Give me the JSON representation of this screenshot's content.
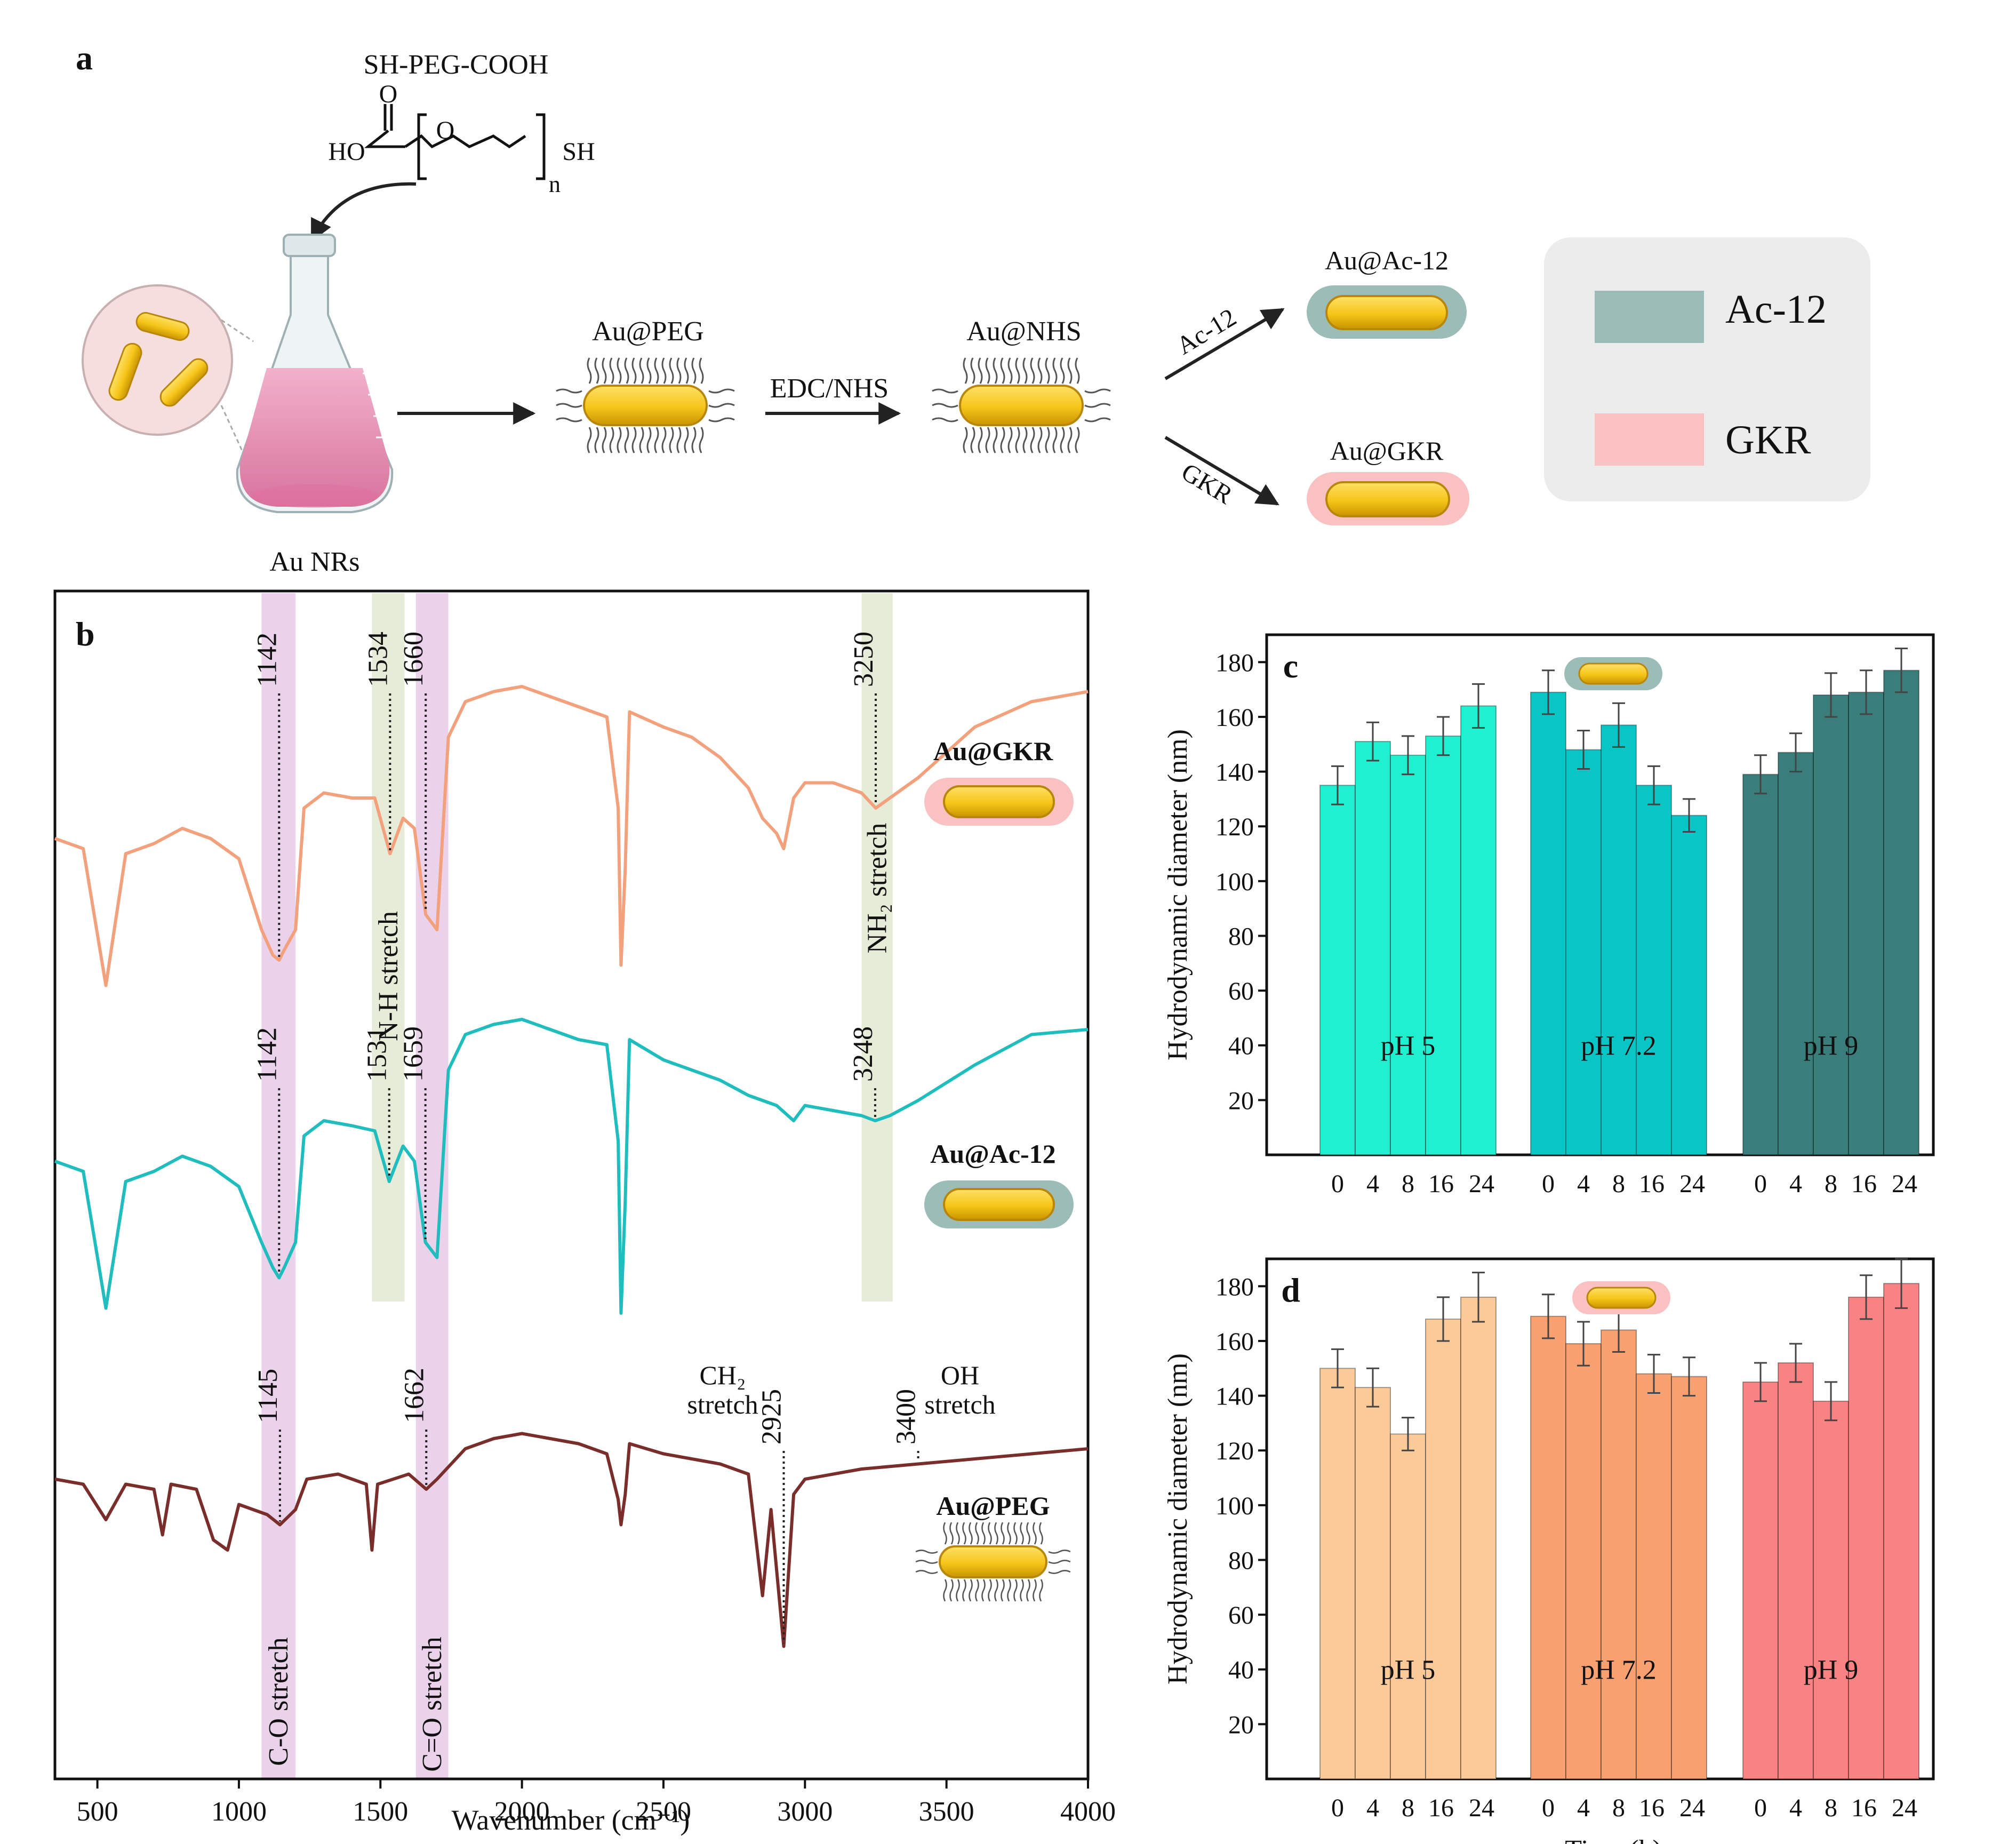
{
  "panels": {
    "a": "a",
    "b": "b",
    "c": "c",
    "d": "d"
  },
  "scheme": {
    "reagent": "SH-PEG-COOH",
    "formula_o": "O",
    "formula_ho": "HO",
    "formula_ring_o": "O",
    "formula_sh": "SH",
    "formula_n": "n",
    "au_nrs": "Au NRs",
    "au_peg": "Au@PEG",
    "edc_nhs": "EDC/NHS",
    "au_nhs": "Au@NHS",
    "ac12_arrow": "Ac-12",
    "gkr_arrow": "GKR",
    "au_ac12": "Au@Ac-12",
    "au_gkr": "Au@GKR"
  },
  "legend": [
    {
      "label": "Ac-12",
      "color": "#9cbcb8"
    },
    {
      "label": "GKR",
      "color": "#f9c1c1"
    }
  ],
  "colors": {
    "gold": "#f5c518",
    "gold_edge": "#b8860b",
    "flask_liquid": "#e592b4",
    "gkr_spectrum": "#f3a07c",
    "ac12_spectrum": "#1fbdbd",
    "peg_spectrum": "#7a2e2b",
    "band_purple": "#ead3ea",
    "band_green": "#e7ecd9"
  },
  "chart_data": [
    {
      "panel": "b",
      "type": "line",
      "xlabel": "Wavenumber (cm⁻¹)",
      "xlim": [
        350,
        4000
      ],
      "xticks": [
        "500",
        "1000",
        "1500",
        "2000",
        "2500",
        "3000",
        "3500",
        "4000"
      ],
      "grid": false,
      "series": [
        {
          "name": "Au@GKR",
          "points": [
            [
              350,
              3.4
            ],
            [
              450,
              3.2
            ],
            [
              530,
              0.5
            ],
            [
              600,
              3.1
            ],
            [
              700,
              3.3
            ],
            [
              800,
              3.6
            ],
            [
              900,
              3.4
            ],
            [
              1000,
              3.0
            ],
            [
              1080,
              1.6
            ],
            [
              1120,
              1.1
            ],
            [
              1142,
              1.0
            ],
            [
              1160,
              1.2
            ],
            [
              1200,
              1.6
            ],
            [
              1230,
              4.0
            ],
            [
              1300,
              4.3
            ],
            [
              1400,
              4.2
            ],
            [
              1480,
              4.2
            ],
            [
              1534,
              3.1
            ],
            [
              1580,
              3.8
            ],
            [
              1620,
              3.6
            ],
            [
              1660,
              1.9
            ],
            [
              1700,
              1.6
            ],
            [
              1740,
              5.4
            ],
            [
              1800,
              6.1
            ],
            [
              1900,
              6.3
            ],
            [
              2000,
              6.4
            ],
            [
              2100,
              6.2
            ],
            [
              2200,
              6.0
            ],
            [
              2300,
              5.8
            ],
            [
              2340,
              4.0
            ],
            [
              2350,
              0.9
            ],
            [
              2365,
              2.8
            ],
            [
              2380,
              5.9
            ],
            [
              2500,
              5.6
            ],
            [
              2600,
              5.4
            ],
            [
              2700,
              5.0
            ],
            [
              2800,
              4.4
            ],
            [
              2850,
              3.8
            ],
            [
              2900,
              3.5
            ],
            [
              2925,
              3.2
            ],
            [
              2960,
              4.2
            ],
            [
              3000,
              4.5
            ],
            [
              3100,
              4.5
            ],
            [
              3200,
              4.3
            ],
            [
              3250,
              4.0
            ],
            [
              3300,
              4.2
            ],
            [
              3400,
              4.6
            ],
            [
              3600,
              5.6
            ],
            [
              3800,
              6.1
            ],
            [
              4000,
              6.3
            ]
          ]
        },
        {
          "name": "Au@Ac-12",
          "points": [
            [
              350,
              3.4
            ],
            [
              450,
              3.2
            ],
            [
              530,
              0.5
            ],
            [
              600,
              3.0
            ],
            [
              700,
              3.2
            ],
            [
              800,
              3.5
            ],
            [
              900,
              3.3
            ],
            [
              1000,
              2.9
            ],
            [
              1080,
              1.8
            ],
            [
              1120,
              1.3
            ],
            [
              1142,
              1.1
            ],
            [
              1160,
              1.3
            ],
            [
              1200,
              1.8
            ],
            [
              1230,
              3.9
            ],
            [
              1300,
              4.2
            ],
            [
              1400,
              4.1
            ],
            [
              1480,
              4.0
            ],
            [
              1531,
              3.0
            ],
            [
              1580,
              3.7
            ],
            [
              1620,
              3.4
            ],
            [
              1659,
              1.8
            ],
            [
              1700,
              1.5
            ],
            [
              1740,
              5.2
            ],
            [
              1800,
              5.9
            ],
            [
              1900,
              6.1
            ],
            [
              2000,
              6.2
            ],
            [
              2100,
              6.0
            ],
            [
              2200,
              5.8
            ],
            [
              2300,
              5.7
            ],
            [
              2340,
              3.8
            ],
            [
              2350,
              0.4
            ],
            [
              2365,
              2.6
            ],
            [
              2380,
              5.8
            ],
            [
              2500,
              5.4
            ],
            [
              2600,
              5.2
            ],
            [
              2700,
              5.0
            ],
            [
              2800,
              4.7
            ],
            [
              2900,
              4.5
            ],
            [
              2960,
              4.2
            ],
            [
              3000,
              4.5
            ],
            [
              3100,
              4.4
            ],
            [
              3200,
              4.3
            ],
            [
              3248,
              4.2
            ],
            [
              3300,
              4.3
            ],
            [
              3400,
              4.6
            ],
            [
              3600,
              5.3
            ],
            [
              3800,
              5.9
            ],
            [
              4000,
              6.0
            ]
          ]
        },
        {
          "name": "Au@PEG",
          "points": [
            [
              350,
              3.6
            ],
            [
              450,
              3.5
            ],
            [
              530,
              2.8
            ],
            [
              600,
              3.5
            ],
            [
              700,
              3.4
            ],
            [
              730,
              2.5
            ],
            [
              760,
              3.5
            ],
            [
              850,
              3.4
            ],
            [
              910,
              2.4
            ],
            [
              960,
              2.2
            ],
            [
              1000,
              3.1
            ],
            [
              1100,
              2.9
            ],
            [
              1145,
              2.7
            ],
            [
              1200,
              3.0
            ],
            [
              1240,
              3.6
            ],
            [
              1350,
              3.7
            ],
            [
              1450,
              3.5
            ],
            [
              1470,
              2.2
            ],
            [
              1490,
              3.5
            ],
            [
              1600,
              3.7
            ],
            [
              1662,
              3.4
            ],
            [
              1700,
              3.6
            ],
            [
              1800,
              4.2
            ],
            [
              1900,
              4.4
            ],
            [
              2000,
              4.5
            ],
            [
              2100,
              4.4
            ],
            [
              2200,
              4.3
            ],
            [
              2300,
              4.1
            ],
            [
              2340,
              3.2
            ],
            [
              2350,
              2.7
            ],
            [
              2365,
              3.3
            ],
            [
              2380,
              4.3
            ],
            [
              2500,
              4.1
            ],
            [
              2600,
              4.0
            ],
            [
              2700,
              3.9
            ],
            [
              2800,
              3.7
            ],
            [
              2850,
              1.3
            ],
            [
              2880,
              3.0
            ],
            [
              2925,
              0.3
            ],
            [
              2960,
              3.3
            ],
            [
              3000,
              3.6
            ],
            [
              3200,
              3.8
            ],
            [
              3400,
              3.9
            ],
            [
              3600,
              4.0
            ],
            [
              3800,
              4.1
            ],
            [
              4000,
              4.2
            ]
          ]
        }
      ],
      "bands": [
        {
          "label": "C-O stretch",
          "x": [
            1080,
            1200
          ],
          "color": "#ead3ea"
        },
        {
          "label": "C=O stretch",
          "x": [
            1625,
            1740
          ],
          "color": "#ead3ea"
        },
        {
          "label": "N-H stretch",
          "x": [
            1470,
            1585
          ],
          "color": "#e7ecd9"
        },
        {
          "label": "NH₂ stretch",
          "x": [
            3200,
            3310
          ],
          "color": "#e7ecd9"
        }
      ],
      "peak_labels": [
        {
          "text": "1142",
          "series": "Au@GKR",
          "x": 1142
        },
        {
          "text": "1534",
          "series": "Au@GKR",
          "x": 1534
        },
        {
          "text": "1660",
          "series": "Au@GKR",
          "x": 1660
        },
        {
          "text": "3250",
          "series": "Au@GKR",
          "x": 3250
        },
        {
          "text": "1142",
          "series": "Au@Ac-12",
          "x": 1142
        },
        {
          "text": "1531",
          "series": "Au@Ac-12",
          "x": 1531
        },
        {
          "text": "1659",
          "series": "Au@Ac-12",
          "x": 1659
        },
        {
          "text": "3248",
          "series": "Au@Ac-12",
          "x": 3248
        },
        {
          "text": "1145",
          "series": "Au@PEG",
          "x": 1145
        },
        {
          "text": "1662",
          "series": "Au@PEG",
          "x": 1662
        },
        {
          "text": "2925",
          "series": "Au@PEG",
          "x": 2925
        },
        {
          "text": "3400",
          "series": "Au@PEG",
          "x": 3400
        }
      ],
      "annotations": {
        "ch2_line1": "CH₂",
        "ch2_line2": "stretch",
        "oh_line1": "OH",
        "oh_line2": "stretch"
      }
    },
    {
      "panel": "c",
      "type": "bar",
      "ylabel": "Hydrodynamic diameter (nm)",
      "ylim": [
        0,
        190
      ],
      "yticks": [
        "20",
        "40",
        "60",
        "80",
        "100",
        "120",
        "140",
        "160",
        "180"
      ],
      "categories": [
        "0",
        "4",
        "8",
        "16",
        "24"
      ],
      "groups": [
        {
          "label": "pH 5",
          "color": "#1ef0d0",
          "values": [
            135,
            151,
            146,
            153,
            164
          ],
          "errors": [
            7,
            7,
            7,
            7,
            8
          ]
        },
        {
          "label": "pH 7.2",
          "color": "#08c6c6",
          "values": [
            169,
            148,
            157,
            135,
            124
          ],
          "errors": [
            8,
            7,
            8,
            7,
            6
          ]
        },
        {
          "label": "pH 9",
          "color": "#3a7e7b",
          "values": [
            139,
            147,
            168,
            169,
            177
          ],
          "errors": [
            7,
            7,
            8,
            8,
            8
          ]
        }
      ]
    },
    {
      "panel": "d",
      "type": "bar",
      "xlabel": "Time (h)",
      "ylabel": "Hydrodynamic diameter (nm)",
      "ylim": [
        0,
        190
      ],
      "yticks": [
        "20",
        "40",
        "60",
        "80",
        "100",
        "120",
        "140",
        "160",
        "180"
      ],
      "categories": [
        "0",
        "4",
        "8",
        "16",
        "24"
      ],
      "groups": [
        {
          "label": "pH 5",
          "color": "#fcc999",
          "values": [
            150,
            143,
            126,
            168,
            176
          ],
          "errors": [
            7,
            7,
            6,
            8,
            9
          ]
        },
        {
          "label": "pH 7.2",
          "color": "#f9a070",
          "values": [
            169,
            159,
            164,
            148,
            147
          ],
          "errors": [
            8,
            8,
            8,
            7,
            7
          ]
        },
        {
          "label": "pH 9",
          "color": "#f98282",
          "values": [
            145,
            152,
            138,
            176,
            181
          ],
          "errors": [
            7,
            7,
            7,
            8,
            9
          ]
        }
      ]
    }
  ]
}
